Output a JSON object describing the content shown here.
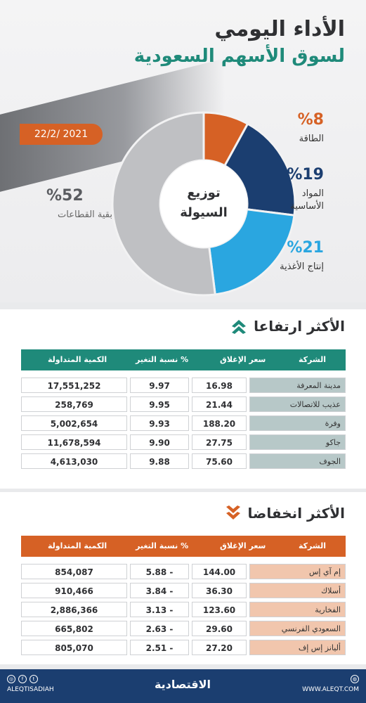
{
  "header": {
    "title_line1": "الأداء اليومي",
    "title_line2": "لسوق الأسهم السعودية"
  },
  "date": "22/2/ 2021",
  "donut": {
    "center_line1": "توزيع",
    "center_line2": "السيولة",
    "segments": [
      {
        "pct_label": "%8",
        "label": "الطاقة",
        "value": 8,
        "color": "#d66125"
      },
      {
        "pct_label": "%19",
        "label_line1": "المواد",
        "label_line2": "الأساسية",
        "value": 19,
        "color": "#1b3e70"
      },
      {
        "pct_label": "%21",
        "label": "إنتاج الأغذية",
        "value": 21,
        "color": "#2aa6e0"
      },
      {
        "pct_label": "%52",
        "label": "بقية القطاعات",
        "value": 52,
        "color": "#bfc0c3"
      }
    ]
  },
  "gainers": {
    "title": "الأكثر ارتفاعا",
    "icon": "double-chevron-up-icon",
    "header_color": "#1f8a7a",
    "name_bg": "#b7c8c8",
    "columns": {
      "company": "الشركة",
      "close": "سعر الإغلاق",
      "change": "نسبة التغير %",
      "volume": "الكمية المتداولة"
    },
    "rows": [
      {
        "company": "مدينة المعرفة",
        "close": "16.98",
        "change": "9.97",
        "volume": "17,551,252"
      },
      {
        "company": "عذيب للاتصالات",
        "close": "21.44",
        "change": "9.95",
        "volume": "258,769"
      },
      {
        "company": "وفرة",
        "close": "188.20",
        "change": "9.93",
        "volume": "5,002,654"
      },
      {
        "company": "جاكو",
        "close": "27.75",
        "change": "9.90",
        "volume": "11,678,594"
      },
      {
        "company": "الجوف",
        "close": "75.60",
        "change": "9.88",
        "volume": "4,613,030"
      }
    ]
  },
  "losers": {
    "title": "الأكثر انخفاضا",
    "icon": "double-chevron-down-icon",
    "header_color": "#d66125",
    "name_bg": "#f1c6ad",
    "columns": {
      "company": "الشركة",
      "close": "سعر الإغلاق",
      "change": "نسبة التغير %",
      "volume": "الكمية المتداولة"
    },
    "rows": [
      {
        "company": "إم آي إس",
        "close": "144.00",
        "change": "5.88 -",
        "volume": "854,087"
      },
      {
        "company": "أسلاك",
        "close": "36.30",
        "change": "3.84 -",
        "volume": "910,466"
      },
      {
        "company": "الفخارية",
        "close": "123.60",
        "change": "3.13 -",
        "volume": "2,886,366"
      },
      {
        "company": "السعودي الفرنسي",
        "close": "29.60",
        "change": "2.63 -",
        "volume": "665,802"
      },
      {
        "company": "أليانز إس إف",
        "close": "27.20",
        "change": "2.51 -",
        "volume": "805,070"
      }
    ]
  },
  "footer": {
    "logo": "الاقتصادية",
    "social_handle": "ALEQTISADIAH",
    "website": "WWW.ALEQT.COM",
    "social_icons": [
      "instagram-icon",
      "facebook-icon",
      "twitter-icon"
    ],
    "web_icon": "globe-icon"
  }
}
